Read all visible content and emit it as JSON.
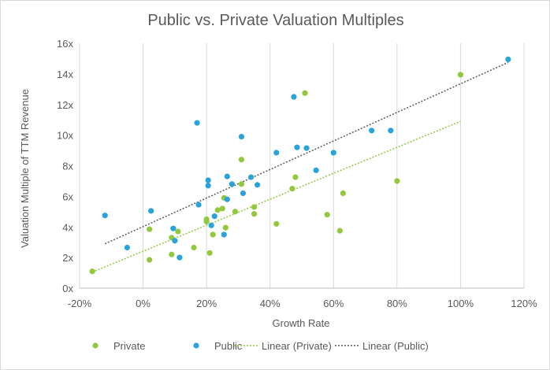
{
  "chart_data": {
    "type": "scatter",
    "title": "Public vs. Private Valuation Multiples",
    "xlabel": "Growth Rate",
    "ylabel": "Valuation Multiple of TTM Revenue",
    "xlim": [
      -20,
      120
    ],
    "ylim": [
      0,
      16
    ],
    "x_ticks": [
      -20,
      0,
      20,
      40,
      60,
      80,
      100,
      120
    ],
    "x_tick_labels": [
      "-20%",
      "0%",
      "20%",
      "40%",
      "60%",
      "80%",
      "100%",
      "120%"
    ],
    "y_ticks": [
      0,
      2,
      4,
      6,
      8,
      10,
      12,
      14,
      16
    ],
    "y_tick_labels": [
      "0x",
      "2x",
      "4x",
      "6x",
      "8x",
      "10x",
      "12x",
      "14x",
      "16x"
    ],
    "grid": "vertical gridlines",
    "legend_position": "bottom",
    "series": [
      {
        "name": "Private",
        "color": "#92c83e",
        "points": [
          [
            -16,
            1.1
          ],
          [
            2,
            1.85
          ],
          [
            2,
            3.85
          ],
          [
            9,
            2.2
          ],
          [
            9,
            3.3
          ],
          [
            10,
            3.1
          ],
          [
            11,
            3.7
          ],
          [
            16,
            2.65
          ],
          [
            20,
            4.5
          ],
          [
            20,
            4.35
          ],
          [
            21,
            2.3
          ],
          [
            22,
            3.5
          ],
          [
            23.5,
            5.1
          ],
          [
            25,
            5.2
          ],
          [
            25.5,
            5.9
          ],
          [
            26,
            3.95
          ],
          [
            29,
            5.0
          ],
          [
            31,
            8.4
          ],
          [
            31,
            6.8
          ],
          [
            35,
            5.3
          ],
          [
            35,
            4.85
          ],
          [
            42,
            4.2
          ],
          [
            47,
            6.5
          ],
          [
            48,
            7.25
          ],
          [
            51,
            12.75
          ],
          [
            58,
            4.8
          ],
          [
            62,
            3.75
          ],
          [
            63,
            6.2
          ],
          [
            80,
            7.0
          ],
          [
            100,
            13.95
          ]
        ]
      },
      {
        "name": "Public",
        "color": "#2aa3dc",
        "points": [
          [
            -12,
            4.75
          ],
          [
            -5,
            2.65
          ],
          [
            2.5,
            5.05
          ],
          [
            9.5,
            3.9
          ],
          [
            10,
            3.1
          ],
          [
            11.5,
            2.0
          ],
          [
            17,
            10.8
          ],
          [
            17.5,
            5.45
          ],
          [
            20.5,
            7.05
          ],
          [
            20.5,
            6.7
          ],
          [
            21.5,
            4.1
          ],
          [
            22.5,
            4.7
          ],
          [
            25.5,
            3.5
          ],
          [
            26.5,
            7.3
          ],
          [
            26.5,
            5.8
          ],
          [
            28,
            6.8
          ],
          [
            31,
            9.9
          ],
          [
            31.5,
            6.2
          ],
          [
            34,
            7.25
          ],
          [
            36,
            6.75
          ],
          [
            42,
            8.85
          ],
          [
            47.5,
            12.5
          ],
          [
            48.5,
            9.2
          ],
          [
            51.5,
            9.15
          ],
          [
            54.5,
            7.7
          ],
          [
            60,
            8.85
          ],
          [
            72,
            10.3
          ],
          [
            78,
            10.3
          ],
          [
            115,
            14.95
          ]
        ]
      }
    ],
    "trendlines": [
      {
        "name": "Linear (Private)",
        "color": "#92c83e",
        "from": [
          -16,
          1.05
        ],
        "to": [
          100,
          10.9
        ]
      },
      {
        "name": "Linear (Public)",
        "color": "#595959",
        "from": [
          -12,
          2.9
        ],
        "to": [
          115,
          14.75
        ]
      }
    ]
  },
  "legend": {
    "items": [
      {
        "label": "Private",
        "kind": "marker",
        "color": "#92c83e"
      },
      {
        "label": "Public",
        "kind": "marker",
        "color": "#2aa3dc"
      },
      {
        "label": "Linear (Private)",
        "kind": "line",
        "color": "#92c83e"
      },
      {
        "label": "Linear (Public)",
        "kind": "line",
        "color": "#595959"
      }
    ]
  }
}
